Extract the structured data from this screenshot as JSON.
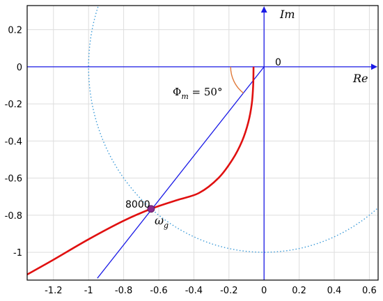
{
  "chart_data": {
    "type": "line",
    "title": "",
    "xlabel": "",
    "ylabel": "",
    "xlim": [
      -1.35,
      0.65
    ],
    "ylim": [
      -1.15,
      0.33
    ],
    "grid": true,
    "x_ticks": [
      -1.2,
      -1,
      -0.8,
      -0.6,
      -0.4,
      -0.2,
      0,
      0.2,
      0.4,
      0.6
    ],
    "x_tick_labels": [
      "-1.2",
      "-1",
      "-0.8",
      "-0.6",
      "-0.4",
      "-0.2",
      "0",
      "0.2",
      "0.4",
      "0.6"
    ],
    "y_ticks": [
      0.2,
      0,
      -0.2,
      -0.4,
      -0.6,
      -0.8,
      -1
    ],
    "y_tick_labels": [
      "0.2",
      "0",
      "-0.2",
      "-0.4",
      "-0.6",
      "-0.8",
      "-1"
    ],
    "axis_labels": {
      "imag": "Im",
      "real": "Re",
      "origin": "0"
    },
    "series": [
      {
        "kind": "nyquist-curve",
        "color": "#e01010",
        "points": [
          [
            -0.06,
            0
          ],
          [
            -0.062,
            -0.1
          ],
          [
            -0.07,
            -0.2
          ],
          [
            -0.09,
            -0.3
          ],
          [
            -0.125,
            -0.4
          ],
          [
            -0.18,
            -0.5
          ],
          [
            -0.26,
            -0.6
          ],
          [
            -0.37,
            -0.68
          ],
          [
            -0.5,
            -0.72
          ],
          [
            -0.644,
            -0.766
          ],
          [
            -0.8,
            -0.83
          ],
          [
            -1.0,
            -0.93
          ],
          [
            -1.2,
            -1.04
          ],
          [
            -1.35,
            -1.12
          ]
        ]
      },
      {
        "kind": "phase-margin-line",
        "color": "#1a1ae6",
        "points": [
          [
            0,
            0
          ],
          [
            -0.95,
            -1.14
          ]
        ]
      },
      {
        "kind": "unit-circle",
        "color": "#3a9ad8",
        "center": [
          0,
          0
        ],
        "radius": 1
      }
    ],
    "annotations": {
      "crossing_point": {
        "x": -0.644,
        "y": -0.766,
        "label": "8000",
        "color": "#8b2a8b"
      },
      "crossover_label": {
        "base": "ω",
        "sub": "g"
      },
      "phase_margin": {
        "prefix": "Φ",
        "sub": "m",
        "text": " = 50°",
        "color": "#e07a3a"
      }
    }
  }
}
